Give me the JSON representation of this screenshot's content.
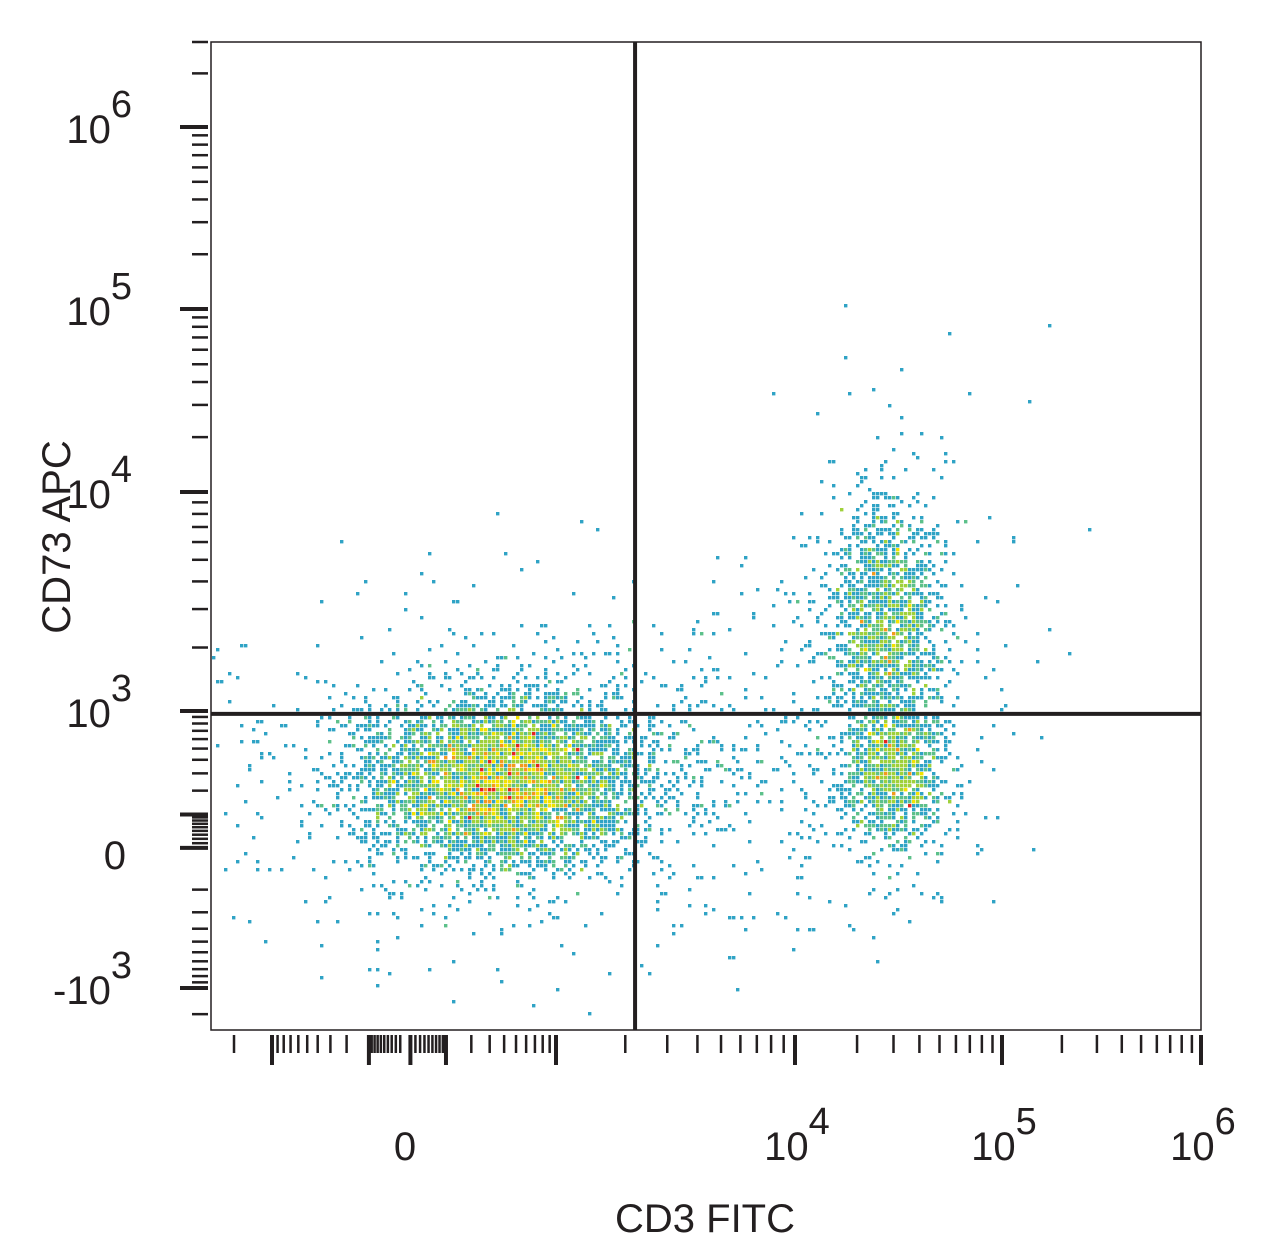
{
  "chart_data": {
    "type": "scatter",
    "subtype": "flow-cytometry-density-pseudocolor",
    "title": "",
    "xlabel": "CD3 FITC",
    "ylabel": "CD73 APC",
    "x_scale": "biexponential",
    "y_scale": "biexponential",
    "x_ticks": [
      {
        "value": 0,
        "base": "0",
        "exp": ""
      },
      {
        "value": 10000,
        "base": "10",
        "exp": "4"
      },
      {
        "value": 100000,
        "base": "10",
        "exp": "5"
      },
      {
        "value": 1000000,
        "base": "10",
        "exp": "6"
      }
    ],
    "y_ticks": [
      {
        "value": -1000,
        "base": "-10",
        "exp": "3"
      },
      {
        "value": 0,
        "base": "0",
        "exp": ""
      },
      {
        "value": 1000,
        "base": "10",
        "exp": "3"
      },
      {
        "value": 10000,
        "base": "10",
        "exp": "4"
      },
      {
        "value": 100000,
        "base": "10",
        "exp": "5"
      },
      {
        "value": 1000000,
        "base": "10",
        "exp": "6"
      }
    ],
    "quadrant_gate": {
      "x": 2200,
      "y": 950
    },
    "populations": [
      {
        "name": "",
        "x_center": 400,
        "y_center": 250,
        "x_spread": 0.33,
        "y_spread": 0.23,
        "count": 5500
      },
      {
        "name": "",
        "x_center": 30000,
        "y_center": 300,
        "x_spread": 0.12,
        "y_spread": 0.2,
        "count": 1200
      },
      {
        "name": "",
        "x_center": 28000,
        "y_center": 2500,
        "x_spread": 0.14,
        "y_spread": 0.32,
        "count": 1600
      }
    ],
    "density_colors": [
      "#2e3e8f",
      "#3a5fb0",
      "#2fa3c5",
      "#5cc08a",
      "#9fd13a",
      "#f2e200",
      "#f39a1c",
      "#e52421"
    ],
    "gate_line_color": "#231f20",
    "grid": false,
    "legend": "none"
  }
}
